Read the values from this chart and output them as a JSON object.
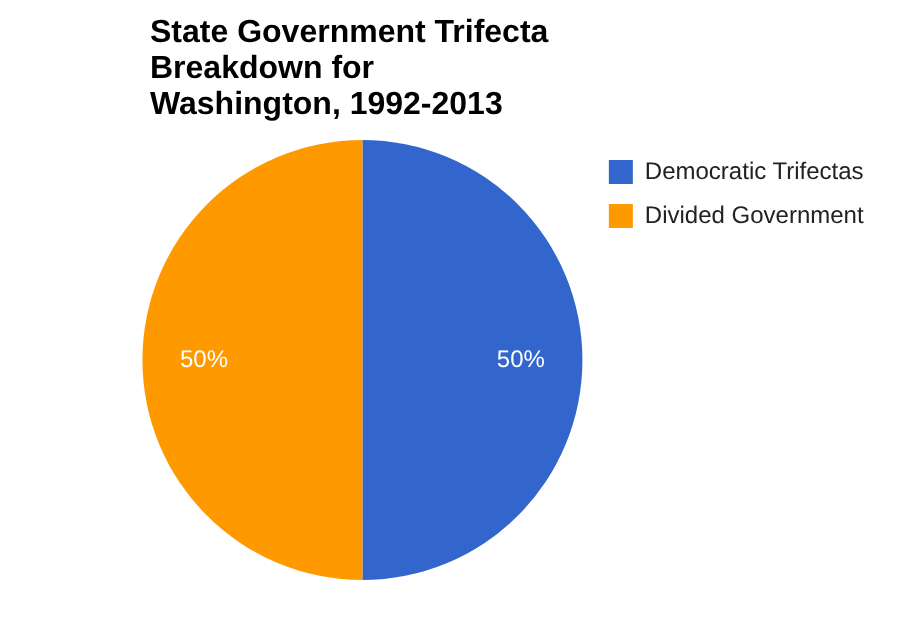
{
  "chart_data": {
    "type": "pie",
    "title": "State Government Trifecta Breakdown for Washington, 1992-2013",
    "categories": [
      "Democratic Trifectas",
      "Divided Government"
    ],
    "values": [
      50,
      50
    ],
    "colors": [
      "#3366cc",
      "#ff9900"
    ],
    "value_labels": [
      "50%",
      "50%"
    ],
    "legend": "right"
  }
}
